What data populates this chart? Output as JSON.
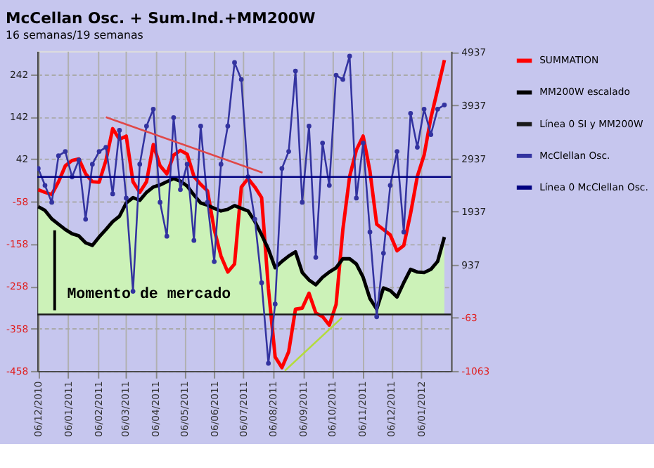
{
  "chart_data": {
    "type": "line",
    "title": "McCellan Osc. + Sum.Ind.+MM200W",
    "subtitle": "16 semanas/19 semanas",
    "x": [
      "2010-12-06",
      "2010-12-13",
      "2010-12-20",
      "2010-12-27",
      "2011-01-03",
      "2011-01-10",
      "2011-01-17",
      "2011-01-24",
      "2011-01-31",
      "2011-02-07",
      "2011-02-14",
      "2011-02-21",
      "2011-02-28",
      "2011-03-07",
      "2011-03-14",
      "2011-03-21",
      "2011-03-28",
      "2011-04-04",
      "2011-04-11",
      "2011-04-18",
      "2011-04-25",
      "2011-05-02",
      "2011-05-09",
      "2011-05-16",
      "2011-05-23",
      "2011-05-30",
      "2011-06-06",
      "2011-06-13",
      "2011-06-20",
      "2011-06-27",
      "2011-07-04",
      "2011-07-11",
      "2011-07-18",
      "2011-07-25",
      "2011-08-01",
      "2011-08-08",
      "2011-08-15",
      "2011-08-22",
      "2011-08-29",
      "2011-09-05",
      "2011-09-12",
      "2011-09-19",
      "2011-09-26",
      "2011-10-03",
      "2011-10-10",
      "2011-10-17",
      "2011-10-24",
      "2011-10-31",
      "2011-11-07",
      "2011-11-14",
      "2011-11-21",
      "2011-11-28",
      "2011-12-05",
      "2011-12-12",
      "2011-12-19",
      "2011-12-26",
      "2012-01-02",
      "2012-01-09",
      "2012-01-16",
      "2012-01-23",
      "2012-01-30"
    ],
    "series": [
      {
        "name": "SUMMATION",
        "color": "#ff0000",
        "axis": "y2",
        "values": [
          2350,
          2300,
          2260,
          2500,
          2800,
          2900,
          2930,
          2650,
          2500,
          2490,
          2900,
          3500,
          3300,
          3360,
          2500,
          2300,
          2500,
          3200,
          2800,
          2650,
          3000,
          3090,
          3020,
          2600,
          2450,
          2330,
          1600,
          1100,
          800,
          950,
          2400,
          2560,
          2400,
          2200,
          490,
          -800,
          -1000,
          -700,
          100,
          120,
          400,
          30,
          -40,
          -200,
          190,
          1600,
          2600,
          3100,
          3360,
          2700,
          1700,
          1600,
          1500,
          1200,
          1300,
          1900,
          2600,
          3000,
          3700,
          4240,
          4790
        ]
      },
      {
        "name": "MM200W escalado",
        "type": "area",
        "color": "#000000",
        "axis": "y2",
        "values": [
          2030,
          1960,
          1800,
          1700,
          1600,
          1520,
          1480,
          1350,
          1300,
          1460,
          1600,
          1750,
          1850,
          2100,
          2200,
          2150,
          2300,
          2400,
          2440,
          2500,
          2560,
          2510,
          2420,
          2250,
          2100,
          2060,
          2000,
          1950,
          1980,
          2050,
          2000,
          1950,
          1750,
          1500,
          1230,
          880,
          1000,
          1100,
          1180,
          790,
          650,
          560,
          700,
          800,
          880,
          1050,
          1050,
          950,
          700,
          300,
          100,
          500,
          450,
          330,
          600,
          850,
          800,
          790,
          850,
          1000,
          1460
        ]
      },
      {
        "name": "Línea 0 SI y MM200W",
        "color": "#1a1a1a",
        "axis": "y2",
        "x": [
          "2010-12-05",
          "2012-02-06"
        ],
        "values": [
          0,
          0
        ]
      },
      {
        "color": "#b4dc3c",
        "axis": "y2",
        "x": [
          "2011-08-18",
          "2011-10-16"
        ],
        "values": [
          -1060,
          -60
        ]
      },
      {
        "name": "McClellan Osc.",
        "color": "#3333a0",
        "marker": "circle",
        "values": [
          20,
          -20,
          -60,
          50,
          60,
          0,
          40,
          -100,
          30,
          60,
          70,
          -40,
          110,
          -50,
          -270,
          30,
          120,
          160,
          -60,
          -140,
          140,
          -30,
          30,
          -150,
          120,
          -60,
          -200,
          30,
          120,
          270,
          230,
          0,
          -100,
          -250,
          -440,
          -300,
          20,
          60,
          250,
          -60,
          120,
          -190,
          80,
          -20,
          240,
          230,
          285,
          -50,
          80,
          -130,
          -330,
          -180,
          -20,
          60,
          -130,
          150,
          70,
          160,
          100,
          160,
          170
        ]
      },
      {
        "name": "Línea 0 McClellan Osc.",
        "color": "#000080",
        "x": [
          "2010-12-05",
          "2012-02-06"
        ],
        "values": [
          0,
          0
        ]
      },
      {
        "color": "#e04848",
        "x": [
          "2011-02-14",
          "2011-07-26"
        ],
        "values": [
          141,
          10
        ]
      }
    ],
    "xlim": [
      "2010-12-05",
      "2012-02-06"
    ],
    "xticks": [
      {
        "value": "2010-12-06",
        "label": "06/12/2010"
      },
      {
        "value": "2011-01-06",
        "label": "06/01/2011"
      },
      {
        "value": "2011-02-06",
        "label": "06/02/2011"
      },
      {
        "value": "2011-03-06",
        "label": "06/03/2011"
      },
      {
        "value": "2011-04-06",
        "label": "06/04/2011"
      },
      {
        "value": "2011-05-06",
        "label": "06/05/2011"
      },
      {
        "value": "2011-06-06",
        "label": "06/06/2011"
      },
      {
        "value": "2011-07-06",
        "label": "06/07/2011"
      },
      {
        "value": "2011-08-06",
        "label": "06/08/2011"
      },
      {
        "value": "2011-09-06",
        "label": "06/09/2011"
      },
      {
        "value": "2011-10-06",
        "label": "06/10/2011"
      },
      {
        "value": "2011-11-06",
        "label": "06/11/2011"
      },
      {
        "value": "2011-12-06",
        "label": "06/12/2011"
      },
      {
        "value": "2012-01-06",
        "label": "06/01/2012"
      }
    ],
    "ylim": [
      -458,
      297
    ],
    "yticks": [
      -458,
      -358,
      -258,
      -158,
      -58,
      42,
      142,
      242
    ],
    "y2lim": [
      -1063,
      4960
    ],
    "y2ticks": [
      -1063,
      -63,
      937,
      1937,
      2937,
      3937,
      4937
    ],
    "annotations": [
      {
        "text": "Momento de mercado",
        "x": "2010-12-23",
        "y": -126
      }
    ],
    "grid": true,
    "legend": "right"
  }
}
